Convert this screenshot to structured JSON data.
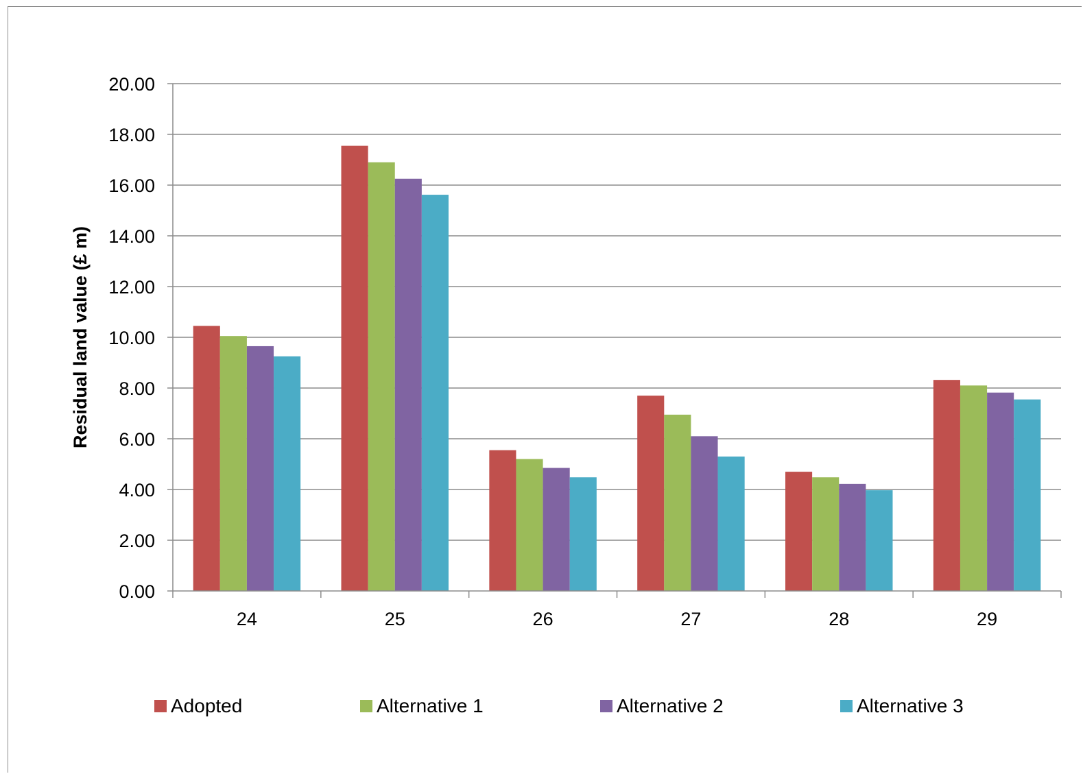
{
  "chart_data": {
    "type": "bar",
    "title": "",
    "xlabel": "",
    "ylabel": "Residual land value (£ m)",
    "ylim": [
      0,
      20
    ],
    "yticks": [
      "0.00",
      "2.00",
      "4.00",
      "6.00",
      "8.00",
      "10.00",
      "12.00",
      "14.00",
      "16.00",
      "18.00",
      "20.00"
    ],
    "grid": true,
    "legend_position": "bottom",
    "categories": [
      "24",
      "25",
      "26",
      "27",
      "28",
      "29"
    ],
    "series": [
      {
        "name": "Adopted",
        "color": "#c0504d",
        "values": [
          10.45,
          17.55,
          5.55,
          7.7,
          4.7,
          8.32
        ]
      },
      {
        "name": "Alternative 1",
        "color": "#9bbb59",
        "values": [
          10.05,
          16.9,
          5.2,
          6.95,
          4.48,
          8.1
        ]
      },
      {
        "name": "Alternative 2",
        "color": "#8064a2",
        "values": [
          9.65,
          16.25,
          4.85,
          6.1,
          4.22,
          7.82
        ]
      },
      {
        "name": "Alternative 3",
        "color": "#4bacc6",
        "values": [
          9.25,
          15.62,
          4.48,
          5.3,
          3.97,
          7.55
        ]
      }
    ]
  }
}
